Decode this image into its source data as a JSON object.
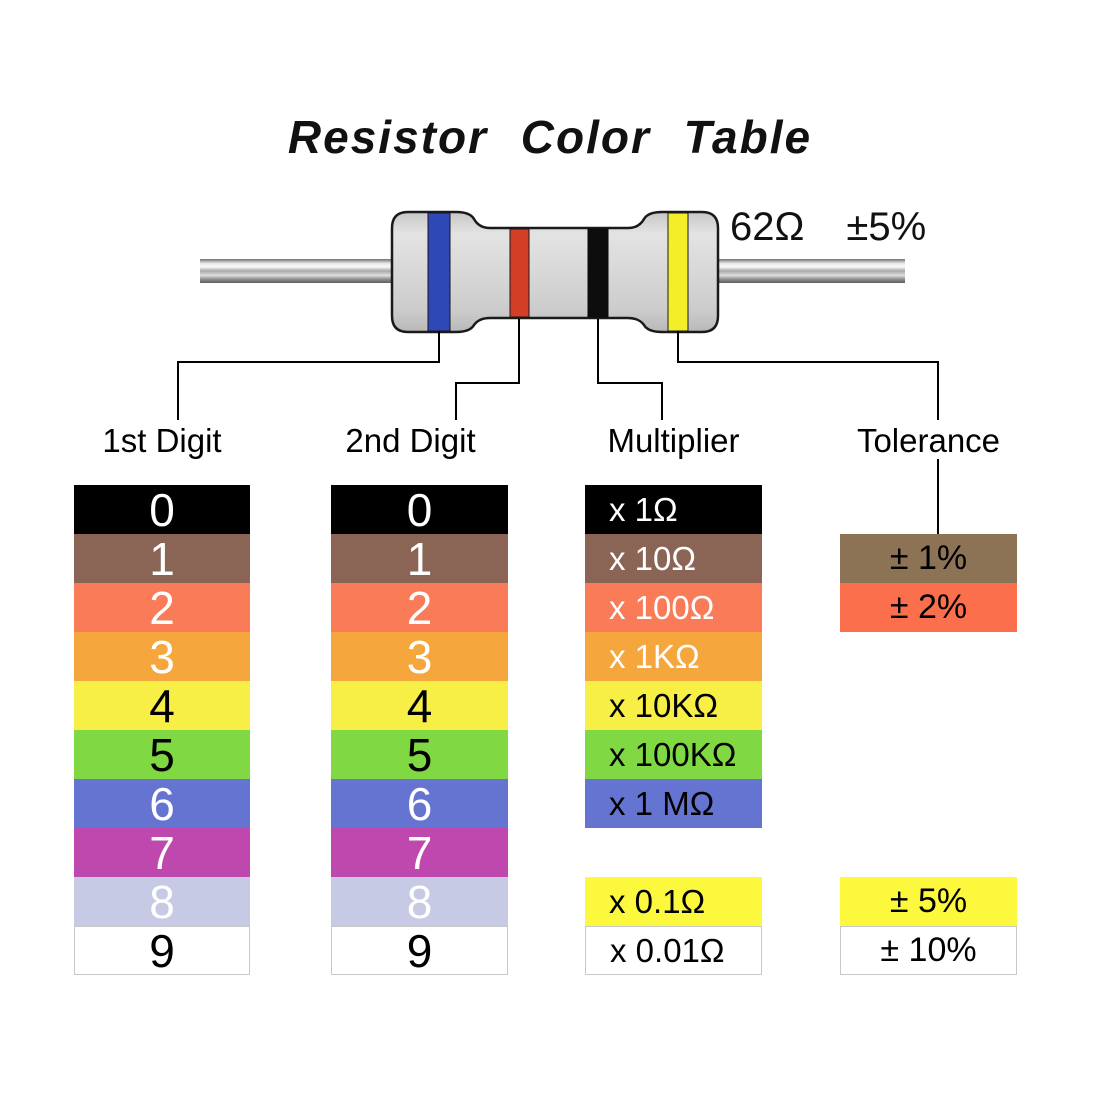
{
  "title": "Resistor Color Table",
  "resistor": {
    "value_label": "62Ω",
    "tolerance_label": "±5%",
    "body_color": "#d6d6d6",
    "bands": [
      {
        "name": "blue-band",
        "color": "#2e49b5",
        "meaning": "1st Digit"
      },
      {
        "name": "red-band",
        "color": "#d23e26",
        "meaning": "2nd Digit"
      },
      {
        "name": "black-band",
        "color": "#0d0d0d",
        "meaning": "Multiplier"
      },
      {
        "name": "yellow-band",
        "color": "#f3ee27",
        "meaning": "Tolerance"
      }
    ]
  },
  "columns": {
    "digit1": {
      "header": "1st Digit",
      "rows": [
        {
          "label": "0",
          "bg": "#000000",
          "fg": "#ffffff"
        },
        {
          "label": "1",
          "bg": "#8a6556",
          "fg": "#ffffff"
        },
        {
          "label": "2",
          "bg": "#f97b58",
          "fg": "#ffffff"
        },
        {
          "label": "3",
          "bg": "#f5a73d",
          "fg": "#ffffff"
        },
        {
          "label": "4",
          "bg": "#f7ef46",
          "fg": "#000000"
        },
        {
          "label": "5",
          "bg": "#80d843",
          "fg": "#000000"
        },
        {
          "label": "6",
          "bg": "#6474d0",
          "fg": "#ffffff"
        },
        {
          "label": "7",
          "bg": "#bf48af",
          "fg": "#ffffff"
        },
        {
          "label": "8",
          "bg": "#c7cae4",
          "fg": "#ffffff"
        },
        {
          "label": "9",
          "bg": "#ffffff",
          "fg": "#000000"
        }
      ]
    },
    "digit2": {
      "header": "2nd Digit",
      "rows": [
        {
          "label": "0",
          "bg": "#000000",
          "fg": "#ffffff"
        },
        {
          "label": "1",
          "bg": "#8a6556",
          "fg": "#ffffff"
        },
        {
          "label": "2",
          "bg": "#f97b58",
          "fg": "#ffffff"
        },
        {
          "label": "3",
          "bg": "#f5a73d",
          "fg": "#ffffff"
        },
        {
          "label": "4",
          "bg": "#f7ef46",
          "fg": "#000000"
        },
        {
          "label": "5",
          "bg": "#80d843",
          "fg": "#000000"
        },
        {
          "label": "6",
          "bg": "#6474d0",
          "fg": "#ffffff"
        },
        {
          "label": "7",
          "bg": "#bf48af",
          "fg": "#ffffff"
        },
        {
          "label": "8",
          "bg": "#c7cae4",
          "fg": "#ffffff"
        },
        {
          "label": "9",
          "bg": "#ffffff",
          "fg": "#000000"
        }
      ]
    },
    "multiplier": {
      "header": "Multiplier",
      "rows": [
        {
          "label": "x 1Ω",
          "bg": "#000000",
          "fg": "#ffffff"
        },
        {
          "label": "x 10Ω",
          "bg": "#8a6556",
          "fg": "#ffffff"
        },
        {
          "label": "x 100Ω",
          "bg": "#f97b58",
          "fg": "#ffffff"
        },
        {
          "label": "x 1KΩ",
          "bg": "#f5a73d",
          "fg": "#ffffff"
        },
        {
          "label": "x 10KΩ",
          "bg": "#f7ef46",
          "fg": "#000000"
        },
        {
          "label": "x 100KΩ",
          "bg": "#80d843",
          "fg": "#000000"
        },
        {
          "label": "x 1 MΩ",
          "bg": "#6474d0",
          "fg": "#000000"
        }
      ],
      "extra_rows": [
        {
          "label": "x 0.1Ω",
          "bg": "#fcf83d",
          "fg": "#000000"
        },
        {
          "label": "x 0.01Ω",
          "bg": "#ffffff",
          "fg": "#000000"
        }
      ]
    },
    "tolerance": {
      "header": "Tolerance",
      "rows_top": [
        {
          "label": "± 1%",
          "bg": "#8d7355",
          "fg": "#000000"
        },
        {
          "label": "± 2%",
          "bg": "#fb6f4c",
          "fg": "#000000"
        }
      ],
      "rows_bottom": [
        {
          "label": "± 5%",
          "bg": "#fcf83d",
          "fg": "#000000"
        },
        {
          "label": "± 10%",
          "bg": "#ffffff",
          "fg": "#000000"
        }
      ]
    }
  }
}
